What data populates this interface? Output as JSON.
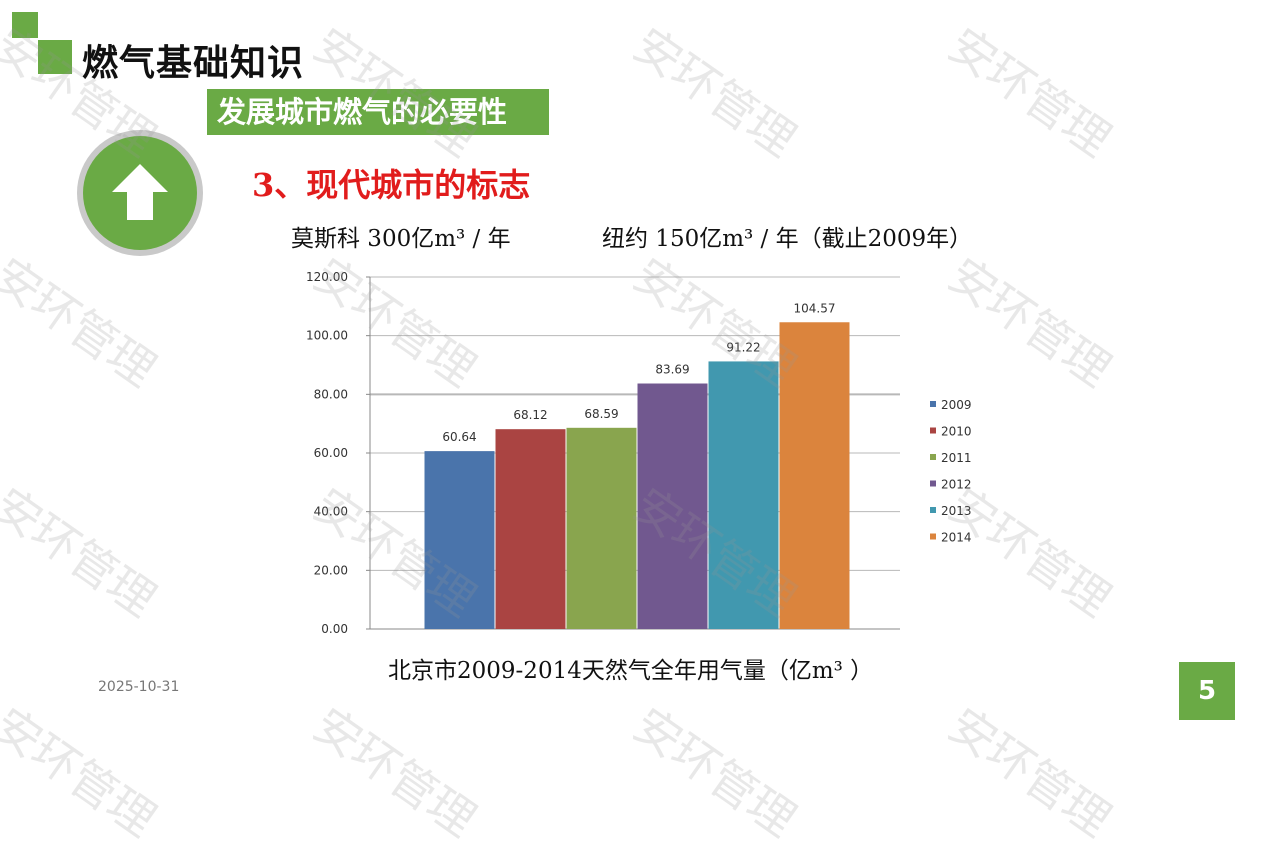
{
  "header": {
    "title": "燃气基础知识",
    "subtitle": "发展城市燃气的必要性"
  },
  "section": {
    "heading": "3、现代城市的标志"
  },
  "info": {
    "moscow": "莫斯科 300亿m³ / 年",
    "newyork": "纽约 150亿m³ / 年（截止2009年）"
  },
  "chart_data": {
    "type": "bar",
    "categories": [
      "2009",
      "2010",
      "2011",
      "2012",
      "2013",
      "2014"
    ],
    "values": [
      60.64,
      68.12,
      68.59,
      83.69,
      91.22,
      104.57
    ],
    "value_labels": [
      "60.64",
      "68.12",
      "68.59",
      "83.69",
      "91.22",
      "104.57"
    ],
    "colors": [
      "#4a74ab",
      "#aa4442",
      "#89a54e",
      "#71588f",
      "#4198af",
      "#db843d"
    ],
    "ylim": [
      0,
      120
    ],
    "yticks": [
      "0.00",
      "20.00",
      "40.00",
      "60.00",
      "80.00",
      "100.00",
      "120.00"
    ],
    "grid": true,
    "legend": "right",
    "title": "",
    "xlabel": "",
    "ylabel": ""
  },
  "caption": "北京市2009-2014天然气全年用气量（亿m³ ）",
  "footer": {
    "date": "2025-10-31",
    "page": "5"
  },
  "watermark": "安环管理",
  "theme": {
    "accent": "#6aaa45",
    "heading_color": "#e11c1c"
  },
  "icons": {
    "badge": "up-arrow-icon"
  }
}
